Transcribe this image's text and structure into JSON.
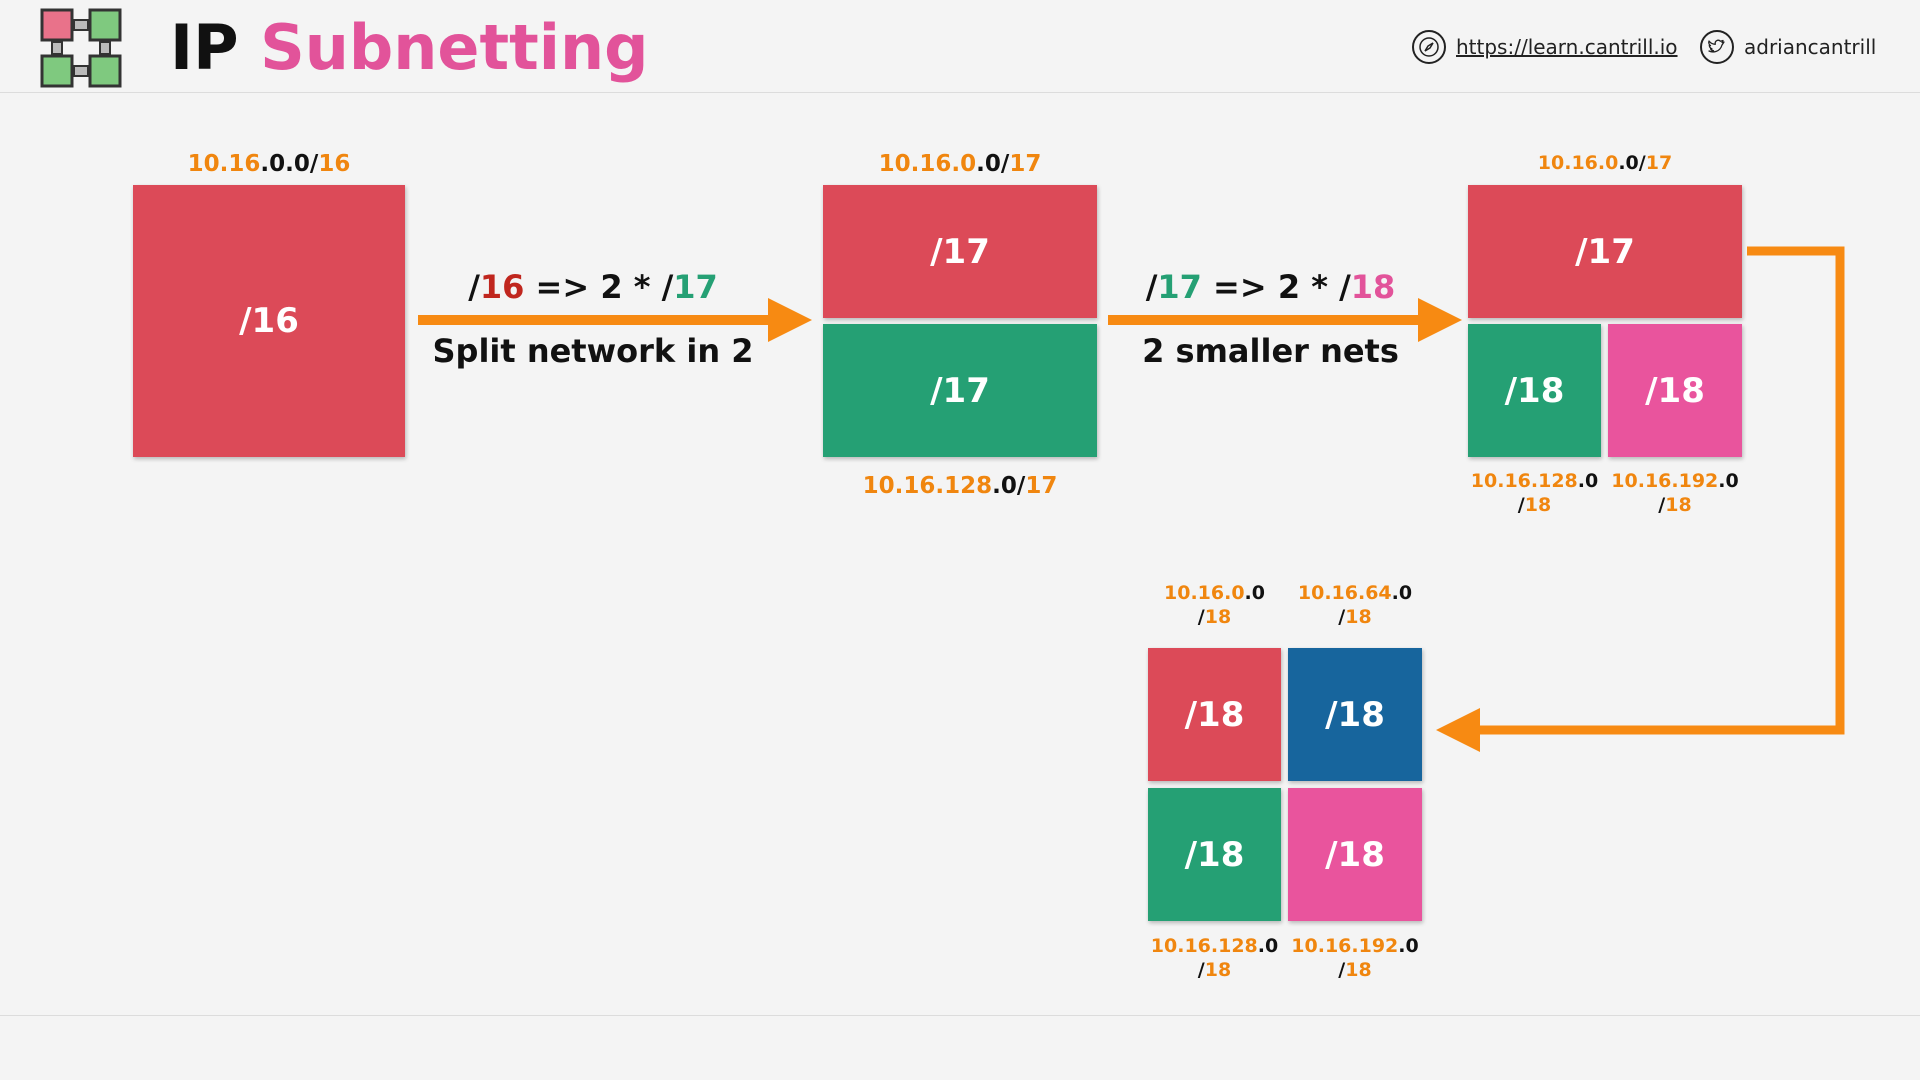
{
  "header": {
    "title_prefix": "IP",
    "title_main": "Subnetting",
    "website": "https://learn.cantrill.io",
    "twitter": "adriancantrill",
    "website_icon": "compass-icon",
    "twitter_icon": "twitter-bird-icon",
    "logo_icon": "network-logo-icon"
  },
  "colors": {
    "red": "#dc4a58",
    "green": "#25a074",
    "pink": "#e9549d",
    "blue": "#17659d",
    "orange": "#f0860f"
  },
  "step1": {
    "label_orange": "10.16",
    "label_black": ".0.0/",
    "label_suffix": "16",
    "block": "/16"
  },
  "step2": {
    "arrow_text_a": "/",
    "arrow_text_b": "16",
    "arrow_text_c": " => 2 * /",
    "arrow_text_d": "17",
    "caption": "Split network in 2",
    "top_label_orange": "10.16.0",
    "top_label_black": ".0/",
    "top_label_suffix": "17",
    "top_block": "/17",
    "bottom_block": "/17",
    "bottom_label_orange": "10.16.128",
    "bottom_label_black": ".0/",
    "bottom_label_suffix": "17"
  },
  "step3": {
    "arrow_text_a": "/",
    "arrow_text_b": "17",
    "arrow_text_c": " => 2 * /",
    "arrow_text_d": "18",
    "caption": "2 smaller nets",
    "top_label_orange": "10.16.0",
    "top_label_black": ".0/",
    "top_label_suffix": "17",
    "top_block": "/17",
    "block_green": "/18",
    "block_pink": "/18",
    "green_label_orange": "10.16.128",
    "green_label_black": ".0",
    "green_label_slash": "/",
    "green_label_suffix": "18",
    "pink_label_orange": "10.16.192",
    "pink_label_black": ".0",
    "pink_label_slash": "/",
    "pink_label_suffix": "18"
  },
  "step4": {
    "blocks": [
      "/18",
      "/18",
      "/18",
      "/18"
    ],
    "tl_label_orange": "10.16.0",
    "tl_label_black": ".0",
    "tl_label_slash": "/",
    "tl_label_suffix": "18",
    "tr_label_orange": "10.16.64",
    "tr_label_black": ".0",
    "tr_label_slash": "/",
    "tr_label_suffix": "18",
    "bl_label_orange": "10.16.128",
    "bl_label_black": ".0",
    "bl_label_slash": "/",
    "bl_label_suffix": "18",
    "br_label_orange": "10.16.192",
    "br_label_black": ".0",
    "br_label_slash": "/",
    "br_label_suffix": "18"
  }
}
